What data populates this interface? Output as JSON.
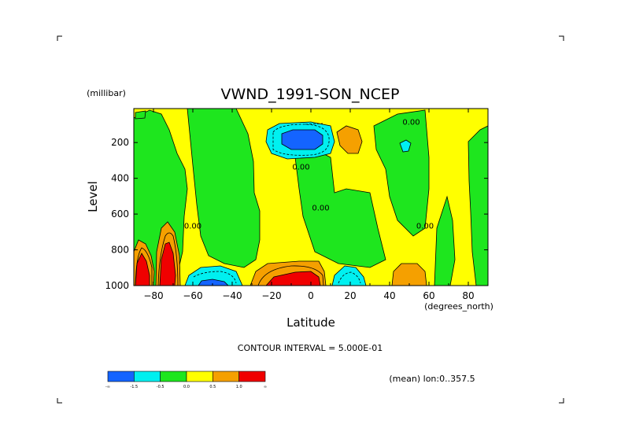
{
  "chart_data": {
    "type": "contour",
    "title": "VWND_1991-SON_NCEP",
    "xlabel": "Latitude",
    "xunit": "(degrees_north)",
    "ylabel": "Level",
    "yunit": "(millibar)",
    "xlim": [
      -90,
      90
    ],
    "ylim": [
      1000,
      10
    ],
    "y_inverted": true,
    "x_ticks": [
      -80,
      -60,
      -40,
      -20,
      0,
      20,
      40,
      60,
      80
    ],
    "x_tick_labels": [
      "−80",
      "−60",
      "−40",
      "−20",
      "0",
      "20",
      "40",
      "60",
      "80"
    ],
    "y_ticks": [
      200,
      400,
      600,
      800,
      1000
    ],
    "y_tick_labels": [
      "200",
      "400",
      "600",
      "800",
      "1000"
    ],
    "contour_interval_text": "CONTOUR INTERVAL = 5.000E-01",
    "average_note": "(mean) lon:0..357.5",
    "contour_labels": [
      {
        "text": "0.00",
        "lat": 51,
        "level": 100
      },
      {
        "text": "0.00",
        "lat": -5,
        "level": 350
      },
      {
        "text": "0.00",
        "lat": 5,
        "level": 580
      },
      {
        "text": "0.00",
        "lat": -60,
        "level": 680
      },
      {
        "text": "0.00",
        "lat": 58,
        "level": 680
      }
    ],
    "colorbar": {
      "colors": [
        "#0000ff",
        "#00ffff",
        "#00ff00",
        "#ffff00",
        "#ffa500",
        "#ff0000"
      ],
      "hi_res_colors": [
        "#1464ff",
        "#00f0f0",
        "#1ee61e",
        "#ffff00",
        "#f5a000",
        "#f00000"
      ],
      "tick_labels": [
        "-∞",
        "-1.5",
        "-0.5",
        "0.0",
        "0.5",
        "1.0",
        "∞"
      ]
    },
    "regions": [
      {
        "level_class": "zero-band",
        "color": "#ffff00",
        "desc": "background 0.0 to 0.5 m/s"
      },
      {
        "level_class": "-0.5..0",
        "color": "#00ff00",
        "areas": [
          "80-60S 80-1000mb",
          "55-30S 100-850mb",
          "5N-20N 400-1000mb",
          "20N-45N 100-700mb",
          "55N-75N 550-1000mb",
          "80N-90N 100-850mb"
        ]
      },
      {
        "level_class": "< -1.5",
        "color": "#1464ff",
        "areas": [
          "5S-15N 150-200mb",
          "60-45S near 1000mb"
        ]
      },
      {
        "level_class": "-1.5..-0.5",
        "color": "#00f0f0",
        "areas": [
          "10S-15N 100-250mb",
          "65-40S 850-1000mb",
          "10N-25N 850-1000mb",
          "50N near 150mb"
        ]
      },
      {
        "level_class": "0.5..1.0",
        "color": "#f5a000",
        "areas": [
          "10N-20N 150-250mb",
          "45N-60N 850-1000mb",
          "-30..5 850-1000mb",
          "85-65S 700-1000mb"
        ]
      },
      {
        "level_class": "> 1.0",
        "color": "#f00000",
        "areas": [
          "-25..5 930-1000mb",
          "88-80S 800-1000mb",
          "80-70S 750-1000mb"
        ]
      }
    ]
  }
}
